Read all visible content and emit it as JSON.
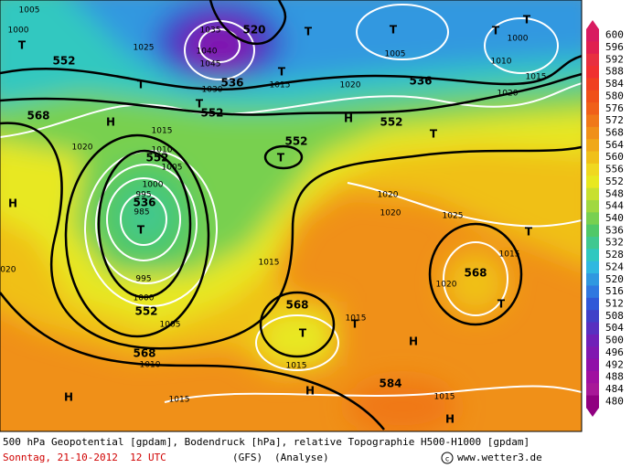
{
  "footer": {
    "line1": "500 hPa Geopotential [gpdam], Bodendruck [hPa], relative Topographie H500-H1000 [gpdam]",
    "date": "Sonntag, 21-10-2012  12 UTC",
    "model": "(GFS)",
    "run": "(Analyse)",
    "copyright": "www.wetter3.de"
  },
  "legend": {
    "values": [
      600,
      596,
      592,
      588,
      584,
      580,
      576,
      572,
      568,
      564,
      560,
      556,
      552,
      548,
      544,
      540,
      536,
      532,
      528,
      524,
      520,
      516,
      512,
      508,
      504,
      500,
      496,
      492,
      488,
      484,
      480
    ],
    "colors": [
      "#d81b60",
      "#e02050",
      "#e83040",
      "#f03030",
      "#f04020",
      "#f05018",
      "#f06018",
      "#f07818",
      "#f09018",
      "#f0a818",
      "#f0c018",
      "#f0d820",
      "#e8e820",
      "#c8e030",
      "#a0d840",
      "#78d050",
      "#50c868",
      "#40c890",
      "#30c8c0",
      "#30b8e0",
      "#3098e0",
      "#3078e0",
      "#3058d8",
      "#4040c8",
      "#5830c0",
      "#7020b8",
      "#8018b0",
      "#9010a8",
      "#a010a0",
      "#a81898",
      "#900080"
    ]
  },
  "map": {
    "geopotential_labels": [
      552,
      520,
      536,
      552,
      536,
      552,
      568,
      552,
      552,
      536,
      552,
      568,
      568,
      568,
      584
    ],
    "pressure_labels": [
      1005,
      1000,
      1025,
      1035,
      1040,
      1045,
      1030,
      1015,
      1020,
      1005,
      1000,
      1010,
      1015,
      1020,
      1015,
      1010,
      1005,
      1000,
      995,
      985,
      995,
      1000,
      1005,
      1010,
      1020,
      1020,
      1020,
      1020,
      1025,
      1015,
      1020,
      1015,
      1015,
      1015,
      1015,
      1015
    ],
    "centers": [
      "T",
      "T",
      "T",
      "T",
      "T",
      "T",
      "T",
      "T",
      "T",
      "T",
      "T",
      "T",
      "T",
      "T",
      "T",
      "H",
      "H",
      "H",
      "H",
      "H",
      "H",
      "H"
    ]
  }
}
